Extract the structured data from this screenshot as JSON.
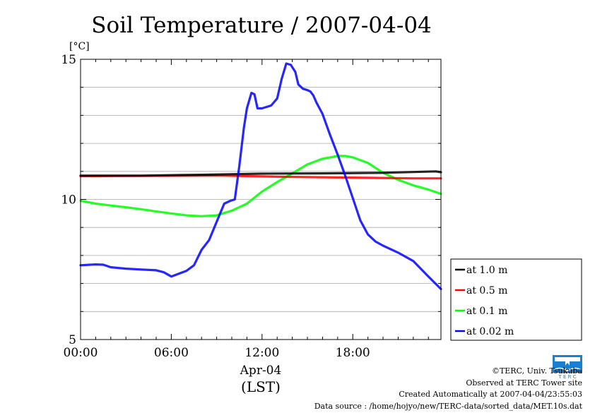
{
  "chart_data": {
    "type": "line",
    "title": "Soil Temperature / 2007-04-04",
    "ylabel": "[°C]",
    "xlabel": "Apr-04",
    "xlabel2": "(LST)",
    "xlim": [
      0,
      23.83
    ],
    "ylim": [
      5,
      15
    ],
    "xticks": [
      0,
      6,
      12,
      18
    ],
    "xtick_labels": [
      "00:00",
      "06:00",
      "12:00",
      "18:00"
    ],
    "yticks": [
      5,
      10,
      15
    ],
    "ytick_labels": [
      "5",
      "10",
      "15"
    ],
    "grid": true,
    "legend_placement": "right",
    "series": [
      {
        "name": "at 1.0 m",
        "color": "#000000",
        "x": [
          0,
          4,
          8,
          12,
          16,
          20,
          23.5,
          23.83
        ],
        "y": [
          10.85,
          10.85,
          10.88,
          10.92,
          10.93,
          10.95,
          11.0,
          10.97
        ]
      },
      {
        "name": "at 0.5 m",
        "color": "#ff0000",
        "x": [
          0,
          4,
          8,
          9.5,
          11,
          13,
          16,
          19,
          22,
          23.83
        ],
        "y": [
          10.83,
          10.84,
          10.85,
          10.85,
          10.83,
          10.81,
          10.79,
          10.77,
          10.75,
          10.75
        ]
      },
      {
        "name": "at 0.1 m",
        "color": "#00ff00",
        "x": [
          0,
          1,
          2,
          3,
          4,
          5,
          6,
          7,
          8,
          9,
          10,
          11,
          12,
          13,
          14,
          15,
          16,
          17,
          17.5,
          18,
          19,
          20,
          21,
          22,
          23,
          23.83
        ],
        "y": [
          9.95,
          9.85,
          9.78,
          9.72,
          9.65,
          9.57,
          9.5,
          9.43,
          9.4,
          9.43,
          9.6,
          9.85,
          10.28,
          10.62,
          10.93,
          11.25,
          11.45,
          11.55,
          11.55,
          11.5,
          11.3,
          10.95,
          10.7,
          10.5,
          10.35,
          10.2
        ]
      },
      {
        "name": "at 0.02 m",
        "color": "#0000ff",
        "x": [
          0,
          1,
          1.5,
          2,
          3,
          4,
          5,
          5.5,
          6,
          6.5,
          7,
          7.5,
          8,
          8.5,
          9,
          9.5,
          9.9,
          10.2,
          10.5,
          10.8,
          11,
          11.3,
          11.5,
          11.7,
          12,
          12.3,
          12.6,
          13,
          13.3,
          13.6,
          13.9,
          14.2,
          14.4,
          14.7,
          15,
          15.2,
          15.4,
          15.6,
          16,
          16.5,
          17,
          17.5,
          18,
          18.5,
          19,
          19.5,
          20,
          21,
          22,
          23,
          23.83
        ],
        "y": [
          7.65,
          7.68,
          7.67,
          7.58,
          7.53,
          7.5,
          7.47,
          7.4,
          7.25,
          7.35,
          7.45,
          7.65,
          8.2,
          8.55,
          9.2,
          9.85,
          9.95,
          10.0,
          11.2,
          12.55,
          13.25,
          13.8,
          13.75,
          13.25,
          13.25,
          13.3,
          13.35,
          13.6,
          14.3,
          14.85,
          14.8,
          14.55,
          14.1,
          13.95,
          13.9,
          13.85,
          13.7,
          13.45,
          13.05,
          12.3,
          11.6,
          10.85,
          10.05,
          9.25,
          8.75,
          8.5,
          8.35,
          8.1,
          7.8,
          7.25,
          6.8
        ]
      }
    ]
  },
  "credits": {
    "line1": "©TERC, Univ. Tsukuba",
    "line2": "Observed at TERC Tower site",
    "line3": "Created Automatically at 2007-04-04/23:55:03",
    "line4": "Data source : /home/hojyo/new/TERC-data/sorted_data/MET.10s.dat"
  },
  "logo": {
    "label": "T E R C",
    "color": "#1a7fd0"
  }
}
